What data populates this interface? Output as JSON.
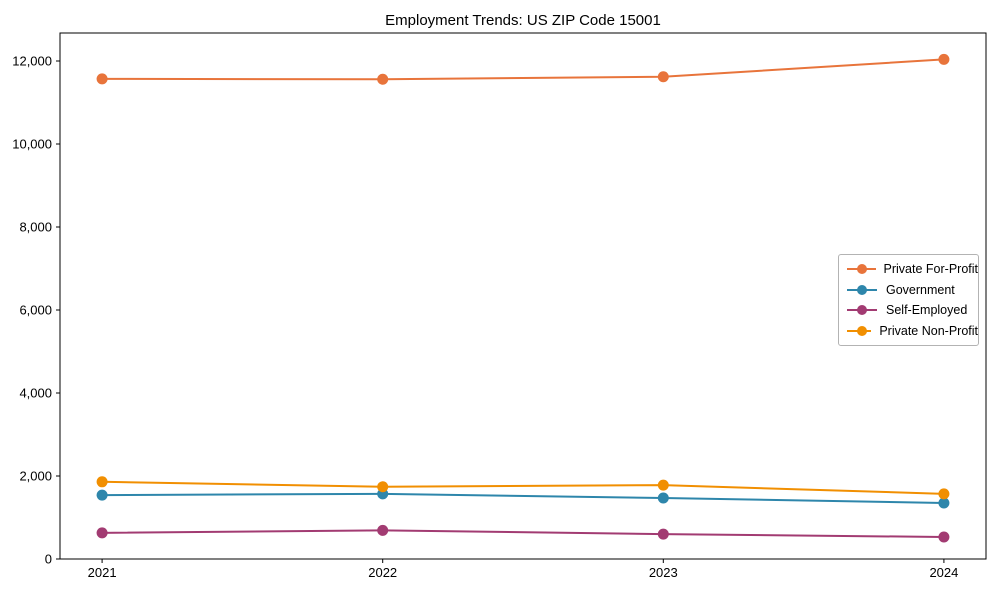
{
  "figure": {
    "background": "#ffffff",
    "axis_color": "#000000"
  },
  "chart_data": {
    "type": "line",
    "title": "Employment Trends: US ZIP Code 15001",
    "xlabel": "",
    "ylabel": "",
    "x": [
      2021,
      2022,
      2023,
      2024
    ],
    "x_tick_labels": [
      "2021",
      "2022",
      "2023",
      "2024"
    ],
    "xlim": [
      2020.85,
      2024.15
    ],
    "y_ticks": [
      0,
      2000,
      4000,
      6000,
      8000,
      10000,
      12000
    ],
    "y_tick_labels": [
      "0",
      "2,000",
      "4,000",
      "6,000",
      "8,000",
      "10,000",
      "12,000"
    ],
    "ylim": [
      0,
      12675
    ],
    "grid": false,
    "marker": "circle",
    "legend": {
      "position": "center-right",
      "border_color": "#b3b3b3",
      "background": "#ffffff"
    },
    "series": [
      {
        "name": "Private For-Profit",
        "color": "#E8743B",
        "values": [
          11570,
          11560,
          11620,
          12040
        ]
      },
      {
        "name": "Government",
        "color": "#2E86AB",
        "values": [
          1540,
          1570,
          1470,
          1350
        ]
      },
      {
        "name": "Self-Employed",
        "color": "#A23B72",
        "values": [
          630,
          690,
          600,
          530
        ]
      },
      {
        "name": "Private Non-Profit",
        "color": "#F18F01",
        "values": [
          1860,
          1740,
          1780,
          1570
        ]
      }
    ]
  }
}
